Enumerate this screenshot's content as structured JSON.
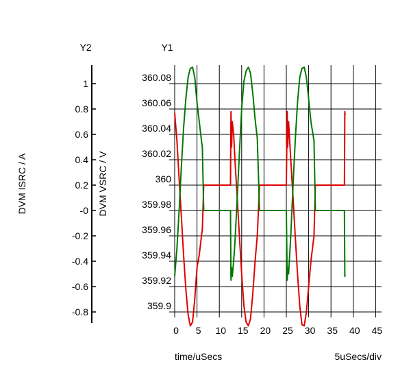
{
  "chart_data": {
    "type": "line",
    "y2_axis": {
      "header": "Y2",
      "label": "DVM ISRC / A",
      "ticks": [
        "1",
        "0.8",
        "0.6",
        "0.4",
        "0.2",
        "-0",
        "-0.2",
        "-0.4",
        "-0.6",
        "-0.8"
      ],
      "ylim": [
        -0.9,
        1.1
      ]
    },
    "y1_axis": {
      "header": "Y1",
      "label": "DVM VSRC / V",
      "ticks": [
        "360.08",
        "360.06",
        "360.04",
        "360.02",
        "360",
        "359.98",
        "359.96",
        "359.94",
        "359.92",
        "359.9"
      ],
      "ylim": [
        359.888,
        360.094
      ]
    },
    "x_axis": {
      "label": "time/uSecs",
      "division_label": "5uSecs/div",
      "ticks": [
        "0",
        "5",
        "10",
        "15",
        "20",
        "25",
        "30",
        "35",
        "40",
        "45"
      ],
      "xlim": [
        0,
        45
      ]
    },
    "grid": true,
    "series": [
      {
        "axis": "y1",
        "color": "#e00000",
        "points": [
          [
            0,
            360.057
          ],
          [
            0.5,
            360.035
          ],
          [
            1,
            360.005
          ],
          [
            1.5,
            359.975
          ],
          [
            2,
            359.945
          ],
          [
            2.5,
            359.918
          ],
          [
            3,
            359.898
          ],
          [
            3.5,
            359.889
          ],
          [
            4,
            359.892
          ],
          [
            4.5,
            359.91
          ],
          [
            5,
            359.935
          ],
          [
            5.5,
            359.945
          ],
          [
            6,
            359.96
          ],
          [
            6.2,
            359.965
          ],
          [
            6.5,
            360
          ],
          [
            12.5,
            360
          ],
          [
            12.6,
            360.058
          ],
          [
            12.75,
            360.03
          ],
          [
            12.9,
            360.05
          ],
          [
            13.2,
            360.04
          ],
          [
            13.5,
            360.02
          ],
          [
            14,
            359.99
          ],
          [
            14.5,
            359.96
          ],
          [
            15,
            359.93
          ],
          [
            15.5,
            359.905
          ],
          [
            16,
            359.892
          ],
          [
            16.5,
            359.889
          ],
          [
            17,
            359.895
          ],
          [
            17.5,
            359.915
          ],
          [
            18,
            359.94
          ],
          [
            18.5,
            359.96
          ],
          [
            19,
            360
          ],
          [
            25,
            360
          ],
          [
            25.2,
            360.058
          ],
          [
            25.3,
            360.03
          ],
          [
            25.5,
            360.05
          ],
          [
            26,
            360.02
          ],
          [
            26.5,
            359.99
          ],
          [
            27,
            359.96
          ],
          [
            27.5,
            359.93
          ],
          [
            28,
            359.905
          ],
          [
            28.5,
            359.89
          ],
          [
            29,
            359.889
          ],
          [
            29.5,
            359.9
          ],
          [
            30,
            359.92
          ],
          [
            30.5,
            359.94
          ],
          [
            31.2,
            359.96
          ],
          [
            31.5,
            360
          ],
          [
            38,
            360
          ],
          [
            38.1,
            360.058
          ],
          [
            38.15,
            360.055
          ]
        ]
      },
      {
        "axis": "y2",
        "color": "#007a00",
        "points": [
          [
            0,
            -0.52
          ],
          [
            0.5,
            -0.3
          ],
          [
            1,
            0.0
          ],
          [
            1.5,
            0.35
          ],
          [
            2,
            0.65
          ],
          [
            2.5,
            0.88
          ],
          [
            3,
            1.05
          ],
          [
            3.5,
            1.12
          ],
          [
            4,
            1.13
          ],
          [
            4.5,
            1.05
          ],
          [
            5,
            0.85
          ],
          [
            5.5,
            0.7
          ],
          [
            6,
            0.55
          ],
          [
            6.2,
            0.5
          ],
          [
            6.5,
            0
          ],
          [
            12.5,
            0
          ],
          [
            12.6,
            -0.55
          ],
          [
            12.75,
            -0.45
          ],
          [
            12.9,
            -0.52
          ],
          [
            13.2,
            -0.4
          ],
          [
            13.5,
            -0.25
          ],
          [
            14,
            0.1
          ],
          [
            14.5,
            0.45
          ],
          [
            15,
            0.8
          ],
          [
            15.5,
            1.02
          ],
          [
            16,
            1.1
          ],
          [
            16.5,
            1.13
          ],
          [
            17,
            1.08
          ],
          [
            17.5,
            0.92
          ],
          [
            18,
            0.72
          ],
          [
            18.5,
            0.57
          ],
          [
            19,
            0
          ],
          [
            25,
            0
          ],
          [
            25.2,
            -0.55
          ],
          [
            25.3,
            -0.45
          ],
          [
            25.5,
            -0.5
          ],
          [
            26,
            -0.2
          ],
          [
            26.5,
            0.2
          ],
          [
            27,
            0.55
          ],
          [
            27.5,
            0.85
          ],
          [
            28,
            1.05
          ],
          [
            28.5,
            1.12
          ],
          [
            29,
            1.13
          ],
          [
            29.5,
            1.05
          ],
          [
            30,
            0.88
          ],
          [
            30.5,
            0.7
          ],
          [
            31.2,
            0.55
          ],
          [
            31.5,
            0
          ],
          [
            38,
            0
          ],
          [
            38.1,
            -0.52
          ],
          [
            38.15,
            -0.5
          ]
        ]
      }
    ]
  }
}
